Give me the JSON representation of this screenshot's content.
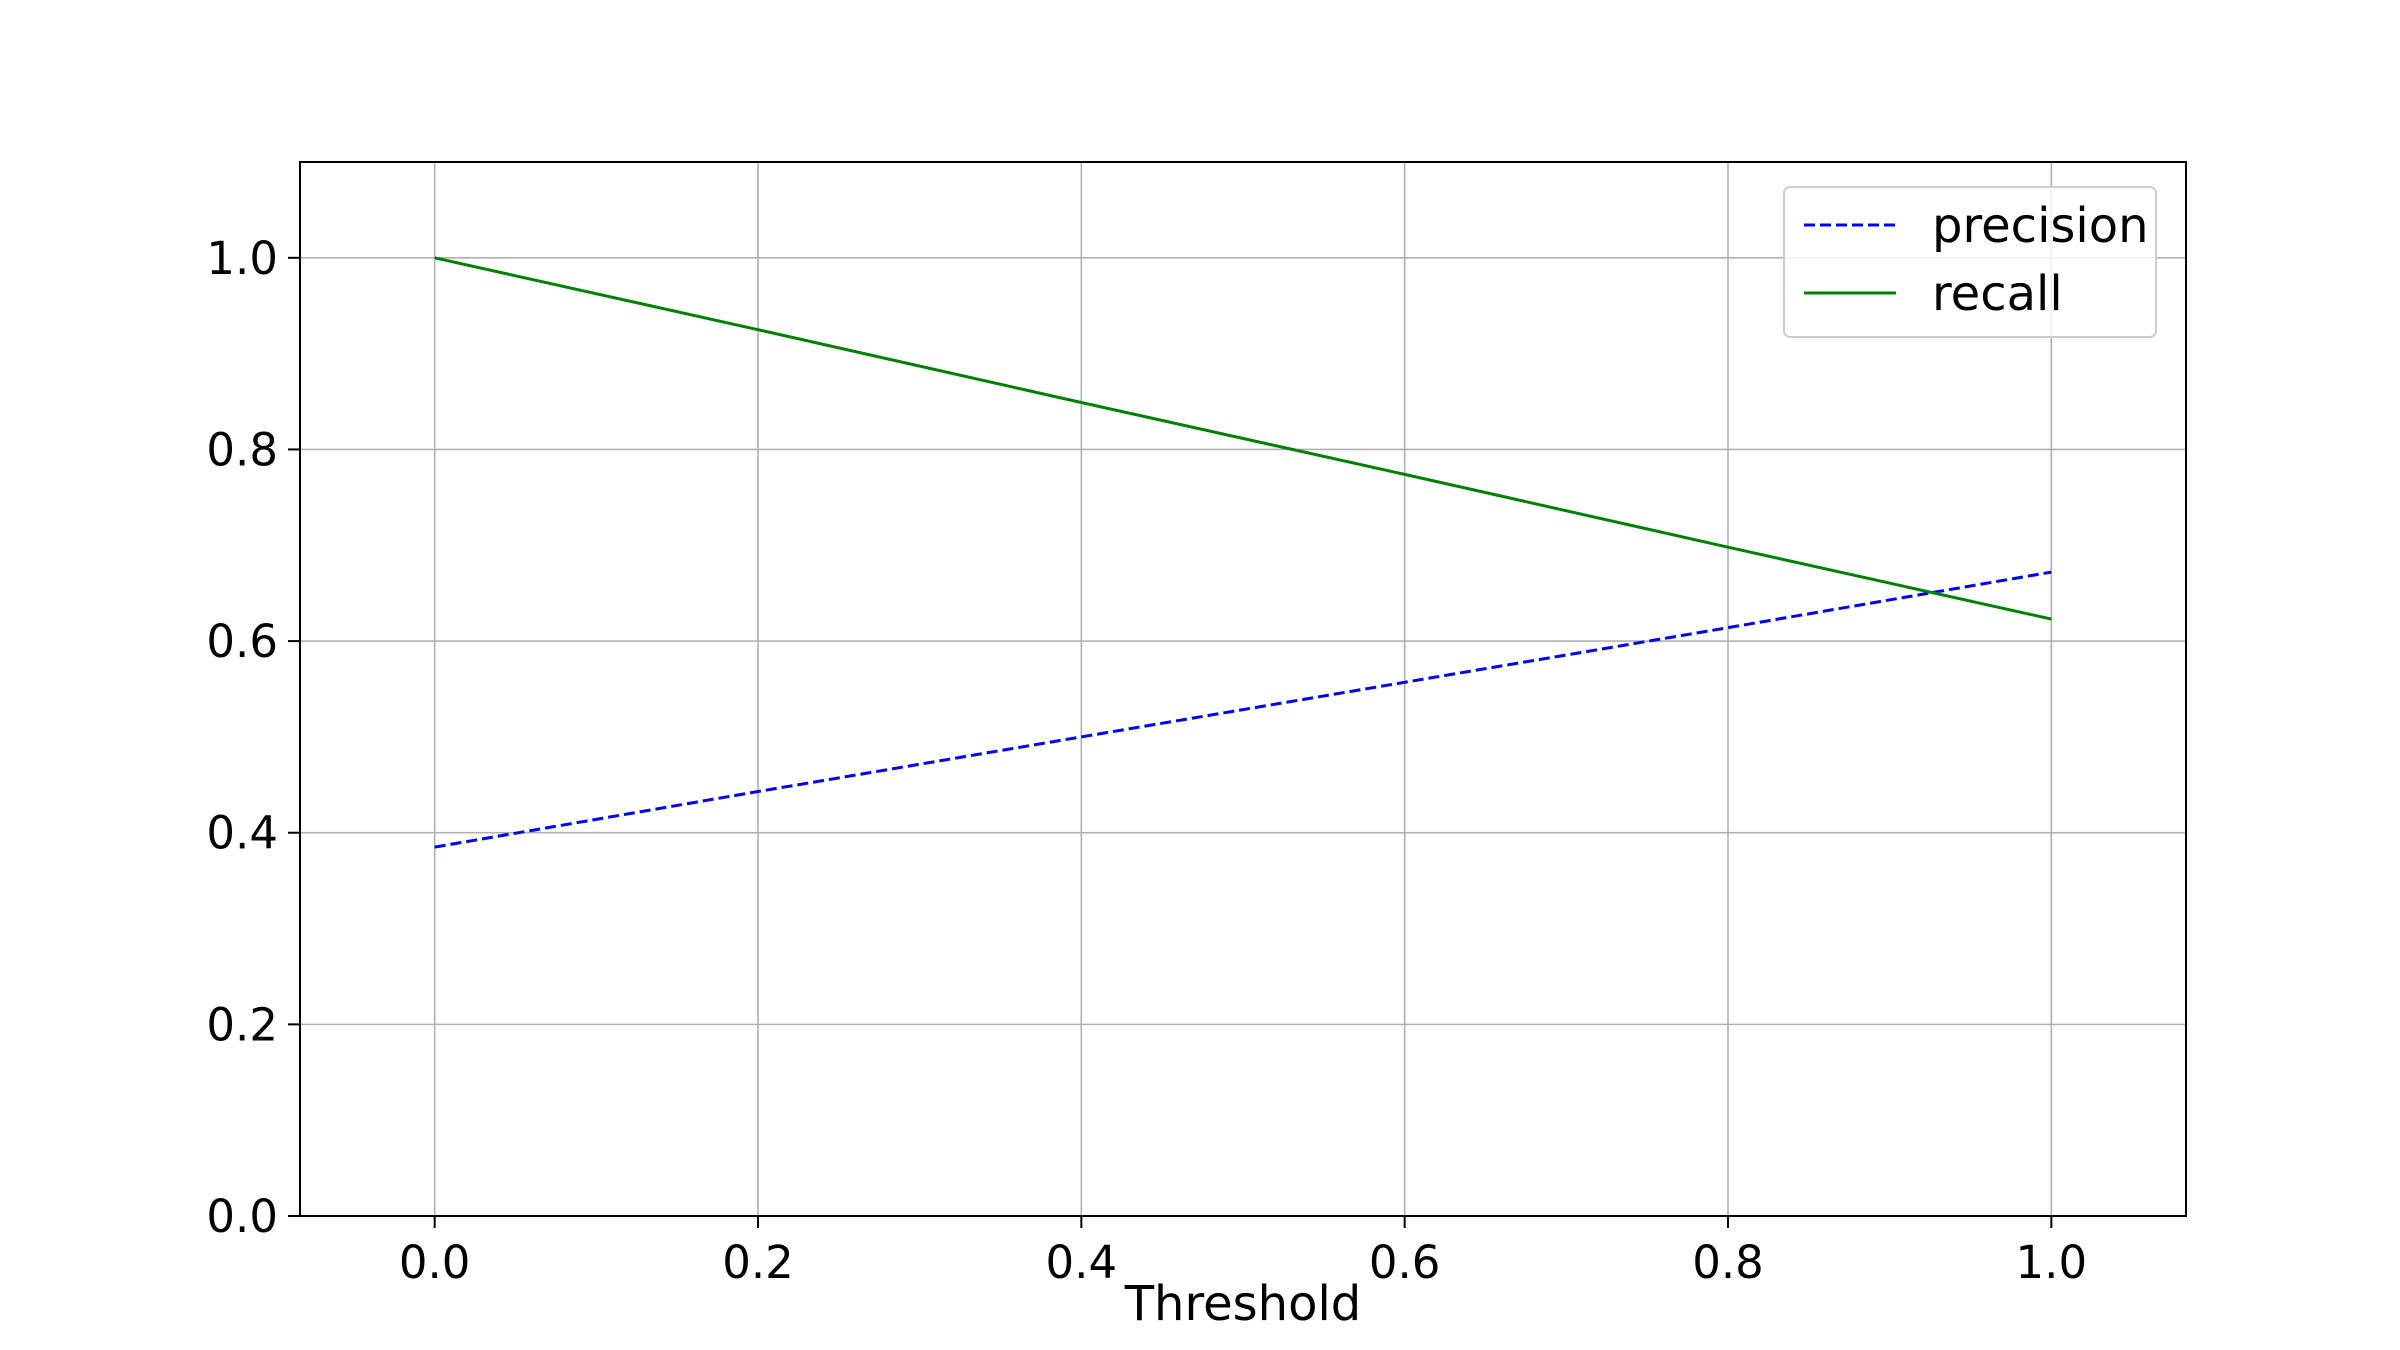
{
  "chart_data": {
    "type": "line",
    "title": "",
    "xlabel": "Threshold",
    "ylabel": "",
    "xlim": [
      -0.0833,
      1.0833
    ],
    "ylim": [
      0.0,
      1.1
    ],
    "grid": true,
    "legend_position": "top-right",
    "xticks": [
      "0.0",
      "0.2",
      "0.4",
      "0.6",
      "0.8",
      "1.0"
    ],
    "yticks": [
      "0.0",
      "0.2",
      "0.4",
      "0.6",
      "0.8",
      "1.0"
    ],
    "series": [
      {
        "name": "precision",
        "color": "#0000ff",
        "style": "dashed",
        "x": [
          0.0,
          0.2,
          0.4,
          0.6,
          0.8,
          1.0
        ],
        "values": [
          0.385,
          0.443,
          0.5,
          0.557,
          0.614,
          0.672
        ]
      },
      {
        "name": "recall",
        "color": "#008000",
        "style": "solid",
        "x": [
          0.0,
          0.2,
          0.4,
          0.6,
          0.8,
          1.0
        ],
        "values": [
          1.0,
          0.925,
          0.849,
          0.774,
          0.698,
          0.623
        ]
      }
    ]
  }
}
